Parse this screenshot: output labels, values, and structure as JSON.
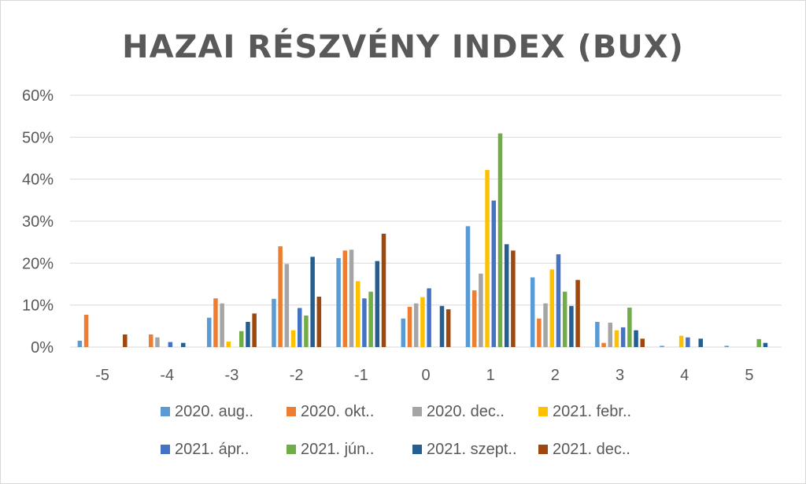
{
  "chart_data": {
    "type": "bar",
    "title": "HAZAI RÉSZVÉNY INDEX (BUX)",
    "xlabel": "",
    "ylabel": "",
    "categories": [
      "-5",
      "-4",
      "-3",
      "-2",
      "-1",
      "0",
      "1",
      "2",
      "3",
      "4",
      "5"
    ],
    "y_ticks": [
      "0%",
      "10%",
      "20%",
      "30%",
      "40%",
      "50%",
      "60%"
    ],
    "ylim": [
      0,
      60
    ],
    "grid": true,
    "legend_position": "bottom",
    "series": [
      {
        "name": "2020. aug..",
        "color": "#5b9bd5",
        "values": [
          1.5,
          0,
          7,
          11.5,
          21.2,
          6.8,
          28.8,
          16.6,
          6,
          0.3,
          0.3
        ]
      },
      {
        "name": "2020. okt..",
        "color": "#ed7d31",
        "values": [
          7.7,
          3,
          11.6,
          24,
          23,
          9.6,
          13.5,
          6.8,
          1,
          0,
          0
        ]
      },
      {
        "name": "2020. dec..",
        "color": "#a5a5a5",
        "values": [
          0,
          2.3,
          10.4,
          19.8,
          23.2,
          10.4,
          17.5,
          10.4,
          5.8,
          0,
          0
        ]
      },
      {
        "name": "2021. febr..",
        "color": "#ffc000",
        "values": [
          0,
          0,
          1.3,
          4,
          15.7,
          11.9,
          42.2,
          18.5,
          4,
          2.7,
          0
        ]
      },
      {
        "name": "2021. ápr..",
        "color": "#4472c4",
        "values": [
          0,
          1.2,
          0,
          9.3,
          11.6,
          14,
          34.9,
          22.1,
          4.7,
          2.3,
          0
        ]
      },
      {
        "name": "2021. jún..",
        "color": "#70ad47",
        "values": [
          0,
          0,
          3.8,
          7.5,
          13.2,
          0,
          50.9,
          13.2,
          9.4,
          0,
          1.9
        ]
      },
      {
        "name": "2021. szept..",
        "color": "#255e91",
        "values": [
          0,
          1,
          6,
          21.5,
          20.5,
          9.8,
          24.5,
          9.8,
          4,
          2,
          1
        ]
      },
      {
        "name": "2021. dec..",
        "color": "#9e480e",
        "values": [
          3,
          0,
          8,
          12,
          27,
          9,
          23,
          16,
          2,
          0,
          0
        ]
      }
    ]
  }
}
